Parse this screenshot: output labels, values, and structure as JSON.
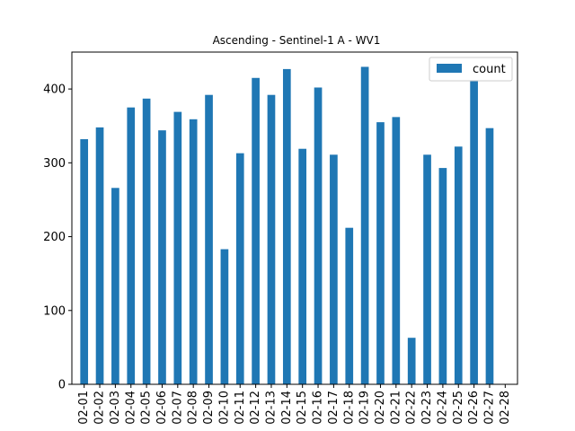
{
  "chart_data": {
    "type": "bar",
    "title": "Ascending - Sentinel-1 A - WV1",
    "xlabel": "",
    "ylabel": "",
    "categories": [
      "02-01",
      "02-02",
      "02-03",
      "02-04",
      "02-05",
      "02-06",
      "02-07",
      "02-08",
      "02-09",
      "02-10",
      "02-11",
      "02-12",
      "02-13",
      "02-14",
      "02-15",
      "02-16",
      "02-17",
      "02-18",
      "02-19",
      "02-20",
      "02-21",
      "02-22",
      "02-23",
      "02-24",
      "02-25",
      "02-26",
      "02-27",
      "02-28"
    ],
    "series": [
      {
        "name": "count",
        "color": "#1f77b4",
        "values": [
          332,
          348,
          266,
          375,
          387,
          344,
          369,
          359,
          392,
          183,
          313,
          415,
          392,
          427,
          319,
          402,
          311,
          212,
          430,
          355,
          362,
          63,
          311,
          293,
          322,
          412,
          347,
          0
        ]
      }
    ],
    "ylim": [
      0,
      450
    ],
    "yticks": [
      0,
      100,
      200,
      300,
      400
    ],
    "legend": "top-right",
    "grid": false
  }
}
